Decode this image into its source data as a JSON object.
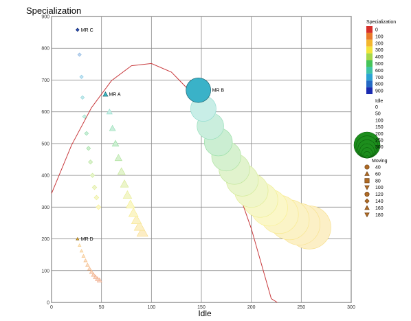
{
  "chart_data": {
    "type": "scatter",
    "title": "Specialization",
    "xlabel": "Idle",
    "ylabel": "",
    "xlim": [
      0,
      300
    ],
    "ylim": [
      0,
      900
    ],
    "x_ticks": [
      "0",
      "50",
      "100",
      "150",
      "200",
      "250",
      "300"
    ],
    "y_ticks": [
      "0",
      "100",
      "200",
      "300",
      "400",
      "500",
      "600",
      "700",
      "800",
      "900"
    ],
    "grid": true,
    "encodings": {
      "color": "Specialization",
      "size": "Idle",
      "shape": "Moving"
    },
    "series": [
      {
        "label": "MR C",
        "shape": "diamond",
        "points": [
          {
            "x": 26,
            "y": 858,
            "spec": 858
          },
          {
            "x": 28,
            "y": 780,
            "spec": 780
          },
          {
            "x": 30,
            "y": 710,
            "spec": 710
          },
          {
            "x": 31,
            "y": 645,
            "spec": 645
          },
          {
            "x": 33,
            "y": 585,
            "spec": 585
          },
          {
            "x": 35,
            "y": 532,
            "spec": 532
          },
          {
            "x": 37,
            "y": 485,
            "spec": 485
          },
          {
            "x": 39,
            "y": 442,
            "spec": 442
          },
          {
            "x": 41,
            "y": 400,
            "spec": 400
          },
          {
            "x": 43,
            "y": 362,
            "spec": 362
          },
          {
            "x": 45,
            "y": 330,
            "spec": 330
          },
          {
            "x": 47,
            "y": 300,
            "spec": 300
          }
        ]
      },
      {
        "label": "MR A",
        "shape": "triangle-up",
        "points": [
          {
            "x": 54,
            "y": 655,
            "spec": 655
          },
          {
            "x": 58,
            "y": 600,
            "spec": 600
          },
          {
            "x": 61,
            "y": 548,
            "spec": 548
          },
          {
            "x": 64,
            "y": 500,
            "spec": 500
          },
          {
            "x": 67,
            "y": 455,
            "spec": 455
          },
          {
            "x": 70,
            "y": 412,
            "spec": 412
          },
          {
            "x": 73,
            "y": 373,
            "spec": 373
          },
          {
            "x": 76,
            "y": 338,
            "spec": 338
          },
          {
            "x": 79,
            "y": 308,
            "spec": 308
          },
          {
            "x": 82,
            "y": 282,
            "spec": 282
          },
          {
            "x": 85,
            "y": 260,
            "spec": 260
          },
          {
            "x": 88,
            "y": 240,
            "spec": 240
          },
          {
            "x": 91,
            "y": 222,
            "spec": 222
          }
        ]
      },
      {
        "label": "MR B",
        "shape": "circle",
        "points": [
          {
            "x": 147,
            "y": 668,
            "spec": 668
          },
          {
            "x": 152,
            "y": 610,
            "spec": 610
          },
          {
            "x": 159,
            "y": 555,
            "spec": 555
          },
          {
            "x": 167,
            "y": 505,
            "spec": 505
          },
          {
            "x": 175,
            "y": 460,
            "spec": 460
          },
          {
            "x": 183,
            "y": 420,
            "spec": 420
          },
          {
            "x": 191,
            "y": 385,
            "spec": 385
          },
          {
            "x": 200,
            "y": 352,
            "spec": 352
          },
          {
            "x": 209,
            "y": 323,
            "spec": 323
          },
          {
            "x": 218,
            "y": 298,
            "spec": 298
          },
          {
            "x": 228,
            "y": 277,
            "spec": 277
          },
          {
            "x": 238,
            "y": 260,
            "spec": 260
          },
          {
            "x": 248,
            "y": 246,
            "spec": 246
          },
          {
            "x": 258,
            "y": 236,
            "spec": 236
          }
        ]
      },
      {
        "label": "MR D",
        "shape": "triangle-up",
        "points": [
          {
            "x": 26,
            "y": 200,
            "spec": 200
          },
          {
            "x": 28,
            "y": 180,
            "spec": 180
          },
          {
            "x": 30,
            "y": 162,
            "spec": 162
          },
          {
            "x": 32,
            "y": 146,
            "spec": 146
          },
          {
            "x": 34,
            "y": 132,
            "spec": 132
          },
          {
            "x": 36,
            "y": 118,
            "spec": 118
          },
          {
            "x": 38,
            "y": 106,
            "spec": 106
          },
          {
            "x": 40,
            "y": 96,
            "spec": 96
          },
          {
            "x": 42,
            "y": 87,
            "spec": 87
          },
          {
            "x": 44,
            "y": 80,
            "spec": 80
          },
          {
            "x": 46,
            "y": 74,
            "spec": 74
          },
          {
            "x": 48,
            "y": 70,
            "spec": 70
          }
        ]
      }
    ],
    "curve": {
      "color": "#c8393c",
      "points": [
        [
          0,
          343
        ],
        [
          20,
          495
        ],
        [
          40,
          613
        ],
        [
          60,
          698
        ],
        [
          80,
          745
        ],
        [
          100,
          752
        ],
        [
          120,
          725
        ],
        [
          140,
          660
        ],
        [
          160,
          555
        ],
        [
          180,
          412
        ],
        [
          200,
          232
        ],
        [
          220,
          12
        ],
        [
          226,
          0
        ]
      ]
    },
    "legends": {
      "color": {
        "title": "Specialization",
        "entries": [
          {
            "label": "0",
            "color": "#d7302a"
          },
          {
            "label": "100",
            "color": "#e97a2b"
          },
          {
            "label": "200",
            "color": "#f3b62e"
          },
          {
            "label": "300",
            "color": "#f2e43a"
          },
          {
            "label": "400",
            "color": "#a6d84a"
          },
          {
            "label": "500",
            "color": "#45c45a"
          },
          {
            "label": "600",
            "color": "#3ec4a6"
          },
          {
            "label": "700",
            "color": "#2aa3d3"
          },
          {
            "label": "800",
            "color": "#2469c4"
          },
          {
            "label": "900",
            "color": "#1a2bb0"
          }
        ]
      },
      "size": {
        "title": "Idle",
        "color": "#1d8e1d",
        "entries": [
          {
            "label": "0",
            "value": 0
          },
          {
            "label": "50",
            "value": 50
          },
          {
            "label": "100",
            "value": 100
          },
          {
            "label": "150",
            "value": 150
          },
          {
            "label": "200",
            "value": 200
          },
          {
            "label": "250",
            "value": 250
          },
          {
            "label": "300",
            "value": 300
          }
        ]
      },
      "shape": {
        "title": "Moving",
        "color": "#b06b25",
        "entries": [
          {
            "label": "40",
            "shape": "circle"
          },
          {
            "label": "60",
            "shape": "triangle-up"
          },
          {
            "label": "80",
            "shape": "square"
          },
          {
            "label": "100",
            "shape": "triangle-down"
          },
          {
            "label": "120",
            "shape": "circle"
          },
          {
            "label": "140",
            "shape": "diamond"
          },
          {
            "label": "160",
            "shape": "triangle-up"
          },
          {
            "label": "180",
            "shape": "triangle-down"
          }
        ]
      }
    }
  }
}
